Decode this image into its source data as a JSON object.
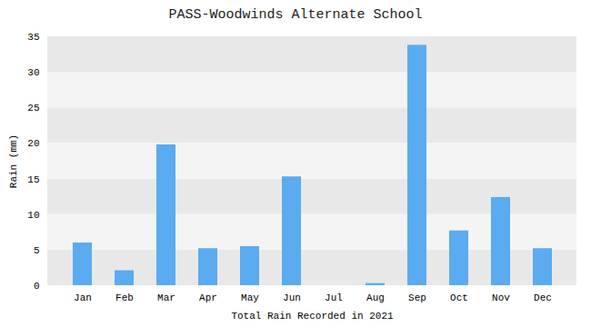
{
  "chart_data": {
    "type": "bar",
    "title": "PASS-Woodwinds Alternate School",
    "xlabel": "Total Rain Recorded in 2021",
    "ylabel": "Rain (mm)",
    "categories": [
      "Jan",
      "Feb",
      "Mar",
      "Apr",
      "May",
      "Jun",
      "Jul",
      "Aug",
      "Sep",
      "Oct",
      "Nov",
      "Dec"
    ],
    "values": [
      6.0,
      2.1,
      19.8,
      5.2,
      5.5,
      15.3,
      0.0,
      0.3,
      33.8,
      7.7,
      12.4,
      5.2
    ],
    "color": "#5aabf0",
    "ylim": [
      0,
      35
    ],
    "yticks": [
      0,
      5,
      10,
      15,
      20,
      25,
      30,
      35
    ],
    "grid": true
  }
}
